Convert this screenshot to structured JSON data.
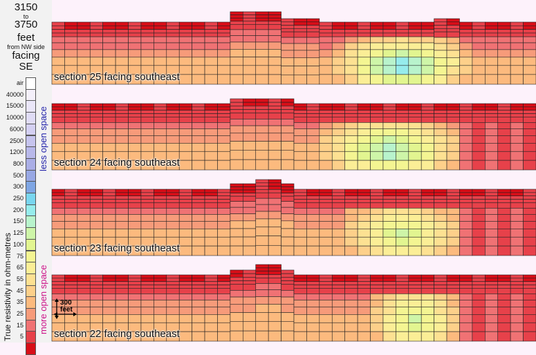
{
  "header": {
    "from": "3150",
    "to_word": "to",
    "to": "3750",
    "unit": "feet",
    "reference": "from NW side",
    "facing_word": "facing",
    "direction": "SE"
  },
  "legend": {
    "axis_title": "True resistivity in ohm-metres",
    "less_label": "less open space",
    "more_label": "more open space",
    "less_color": "#2222aa",
    "more_color": "#cc1188",
    "entries": [
      {
        "label": "air",
        "color": "#ffffff"
      },
      {
        "label": "40000",
        "color": "#f4f0fa"
      },
      {
        "label": "15000",
        "color": "#eae6f8"
      },
      {
        "label": "10000",
        "color": "#e0dcf5"
      },
      {
        "label": "6000",
        "color": "#d4d0f2"
      },
      {
        "label": "2500",
        "color": "#c6c4ee"
      },
      {
        "label": "1200",
        "color": "#b8b8ea"
      },
      {
        "label": "800",
        "color": "#aaaee6"
      },
      {
        "label": "500",
        "color": "#98a8e4"
      },
      {
        "label": "300",
        "color": "#7fa6e4"
      },
      {
        "label": "250",
        "color": "#79d6ef"
      },
      {
        "label": "200",
        "color": "#96ecec"
      },
      {
        "label": "150",
        "color": "#b8f3cc"
      },
      {
        "label": "125",
        "color": "#cef5a8"
      },
      {
        "label": "100",
        "color": "#e2f590"
      },
      {
        "label": "75",
        "color": "#f4f592"
      },
      {
        "label": "65",
        "color": "#fbee96"
      },
      {
        "label": "55",
        "color": "#fde192"
      },
      {
        "label": "45",
        "color": "#fdd08a"
      },
      {
        "label": "35",
        "color": "#fcba7e"
      },
      {
        "label": "25",
        "color": "#f79b7a"
      },
      {
        "label": "15",
        "color": "#f07274"
      },
      {
        "label": "5",
        "color": "#e7414a"
      },
      {
        "label": "",
        "color": "#d80e18"
      }
    ]
  },
  "scale": {
    "value": "300",
    "unit": "feet"
  },
  "chart_data": [
    {
      "type": "heatmap",
      "title": "section 25 facing southeast",
      "columns": 38,
      "zones": [
        {
          "kind": "lower-resistivity",
          "columns": [
            22,
            32
          ],
          "peak_value": 200
        }
      ]
    },
    {
      "type": "heatmap",
      "title": "section 24 facing southeast",
      "columns": 38,
      "zones": [
        {
          "kind": "lower-resistivity",
          "columns": [
            21,
            31
          ],
          "peak_value": 150
        }
      ]
    },
    {
      "type": "heatmap",
      "title": "section 23 facing southeast",
      "columns": 38,
      "zones": [
        {
          "kind": "lower-resistivity",
          "columns": [
            23,
            31
          ],
          "peak_value": 100
        }
      ]
    },
    {
      "type": "heatmap",
      "title": "section 22 facing southeast",
      "columns": 38,
      "zones": [
        {
          "kind": "lower-resistivity",
          "columns": [
            25,
            31
          ],
          "peak_value": 125
        }
      ]
    }
  ]
}
